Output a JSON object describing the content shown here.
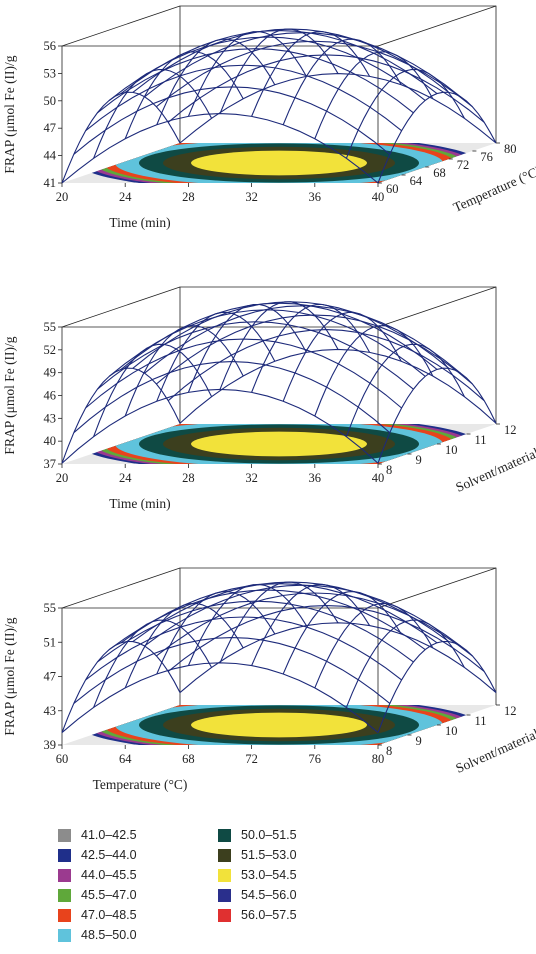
{
  "chart_data": [
    {
      "type": "surface3d",
      "x": {
        "label": "Time (min)",
        "ticks": [
          "20",
          "24",
          "28",
          "32",
          "36",
          "40"
        ],
        "range": [
          20,
          40
        ]
      },
      "y": {
        "label": "Temperature (°C)",
        "ticks": [
          "60",
          "64",
          "68",
          "72",
          "76",
          "80"
        ],
        "range": [
          60,
          80
        ]
      },
      "z": {
        "label": "FRAP (μmol Fe (II)/g",
        "ticks": [
          "41",
          "44",
          "47",
          "50",
          "53",
          "56"
        ],
        "range": [
          41,
          56
        ]
      },
      "surface": {
        "max": 55.5,
        "edge_min": 44,
        "corner_min": 41
      },
      "contour_floor": true
    },
    {
      "type": "surface3d",
      "x": {
        "label": "Time (min)",
        "ticks": [
          "20",
          "24",
          "28",
          "32",
          "36",
          "40"
        ],
        "range": [
          20,
          40
        ]
      },
      "y": {
        "label": "Solvent/material",
        "ticks": [
          "8",
          "9",
          "10",
          "11",
          "12"
        ],
        "range": [
          8,
          12
        ]
      },
      "z": {
        "label": "FRAP (μmol Fe (II)/g",
        "ticks": [
          "37",
          "40",
          "43",
          "46",
          "49",
          "52",
          "55"
        ],
        "range": [
          37,
          55
        ]
      },
      "surface": {
        "max": 55.5,
        "edge_min": 41,
        "corner_min": 37
      },
      "contour_floor": true
    },
    {
      "type": "surface3d",
      "x": {
        "label": "Temperature (°C)",
        "ticks": [
          "60",
          "64",
          "68",
          "72",
          "76",
          "80"
        ],
        "range": [
          60,
          80
        ]
      },
      "y": {
        "label": "Solvent/material",
        "ticks": [
          "8",
          "9",
          "10",
          "11",
          "12"
        ],
        "range": [
          8,
          12
        ]
      },
      "z": {
        "label": "FRAP (μmol Fe (II)/g",
        "ticks": [
          "39",
          "43",
          "47",
          "51",
          "55"
        ],
        "range": [
          39,
          55
        ]
      },
      "surface": {
        "max": 55.5,
        "edge_min": 44,
        "corner_min": 39
      },
      "contour_floor": true
    }
  ],
  "legend": {
    "entries": [
      {
        "label": "41.0–42.5",
        "color": "#8c8c8c"
      },
      {
        "label": "42.5–44.0",
        "color": "#1f2f8a"
      },
      {
        "label": "44.0–45.5",
        "color": "#9b3a8f"
      },
      {
        "label": "45.5–47.0",
        "color": "#5fa83a"
      },
      {
        "label": "47.0–48.5",
        "color": "#e8431c"
      },
      {
        "label": "48.5–50.0",
        "color": "#5fc3dc"
      },
      {
        "label": "50.0–51.5",
        "color": "#0f4a44"
      },
      {
        "label": "51.5–53.0",
        "color": "#3c3f1e"
      },
      {
        "label": "53.0–54.5",
        "color": "#f2e23a"
      },
      {
        "label": "54.5–56.0",
        "color": "#2a2f8c"
      },
      {
        "label": "56.0–57.5",
        "color": "#e03030"
      }
    ]
  },
  "colors": {
    "mesh": "#1d2a7a",
    "box": "#222222"
  }
}
